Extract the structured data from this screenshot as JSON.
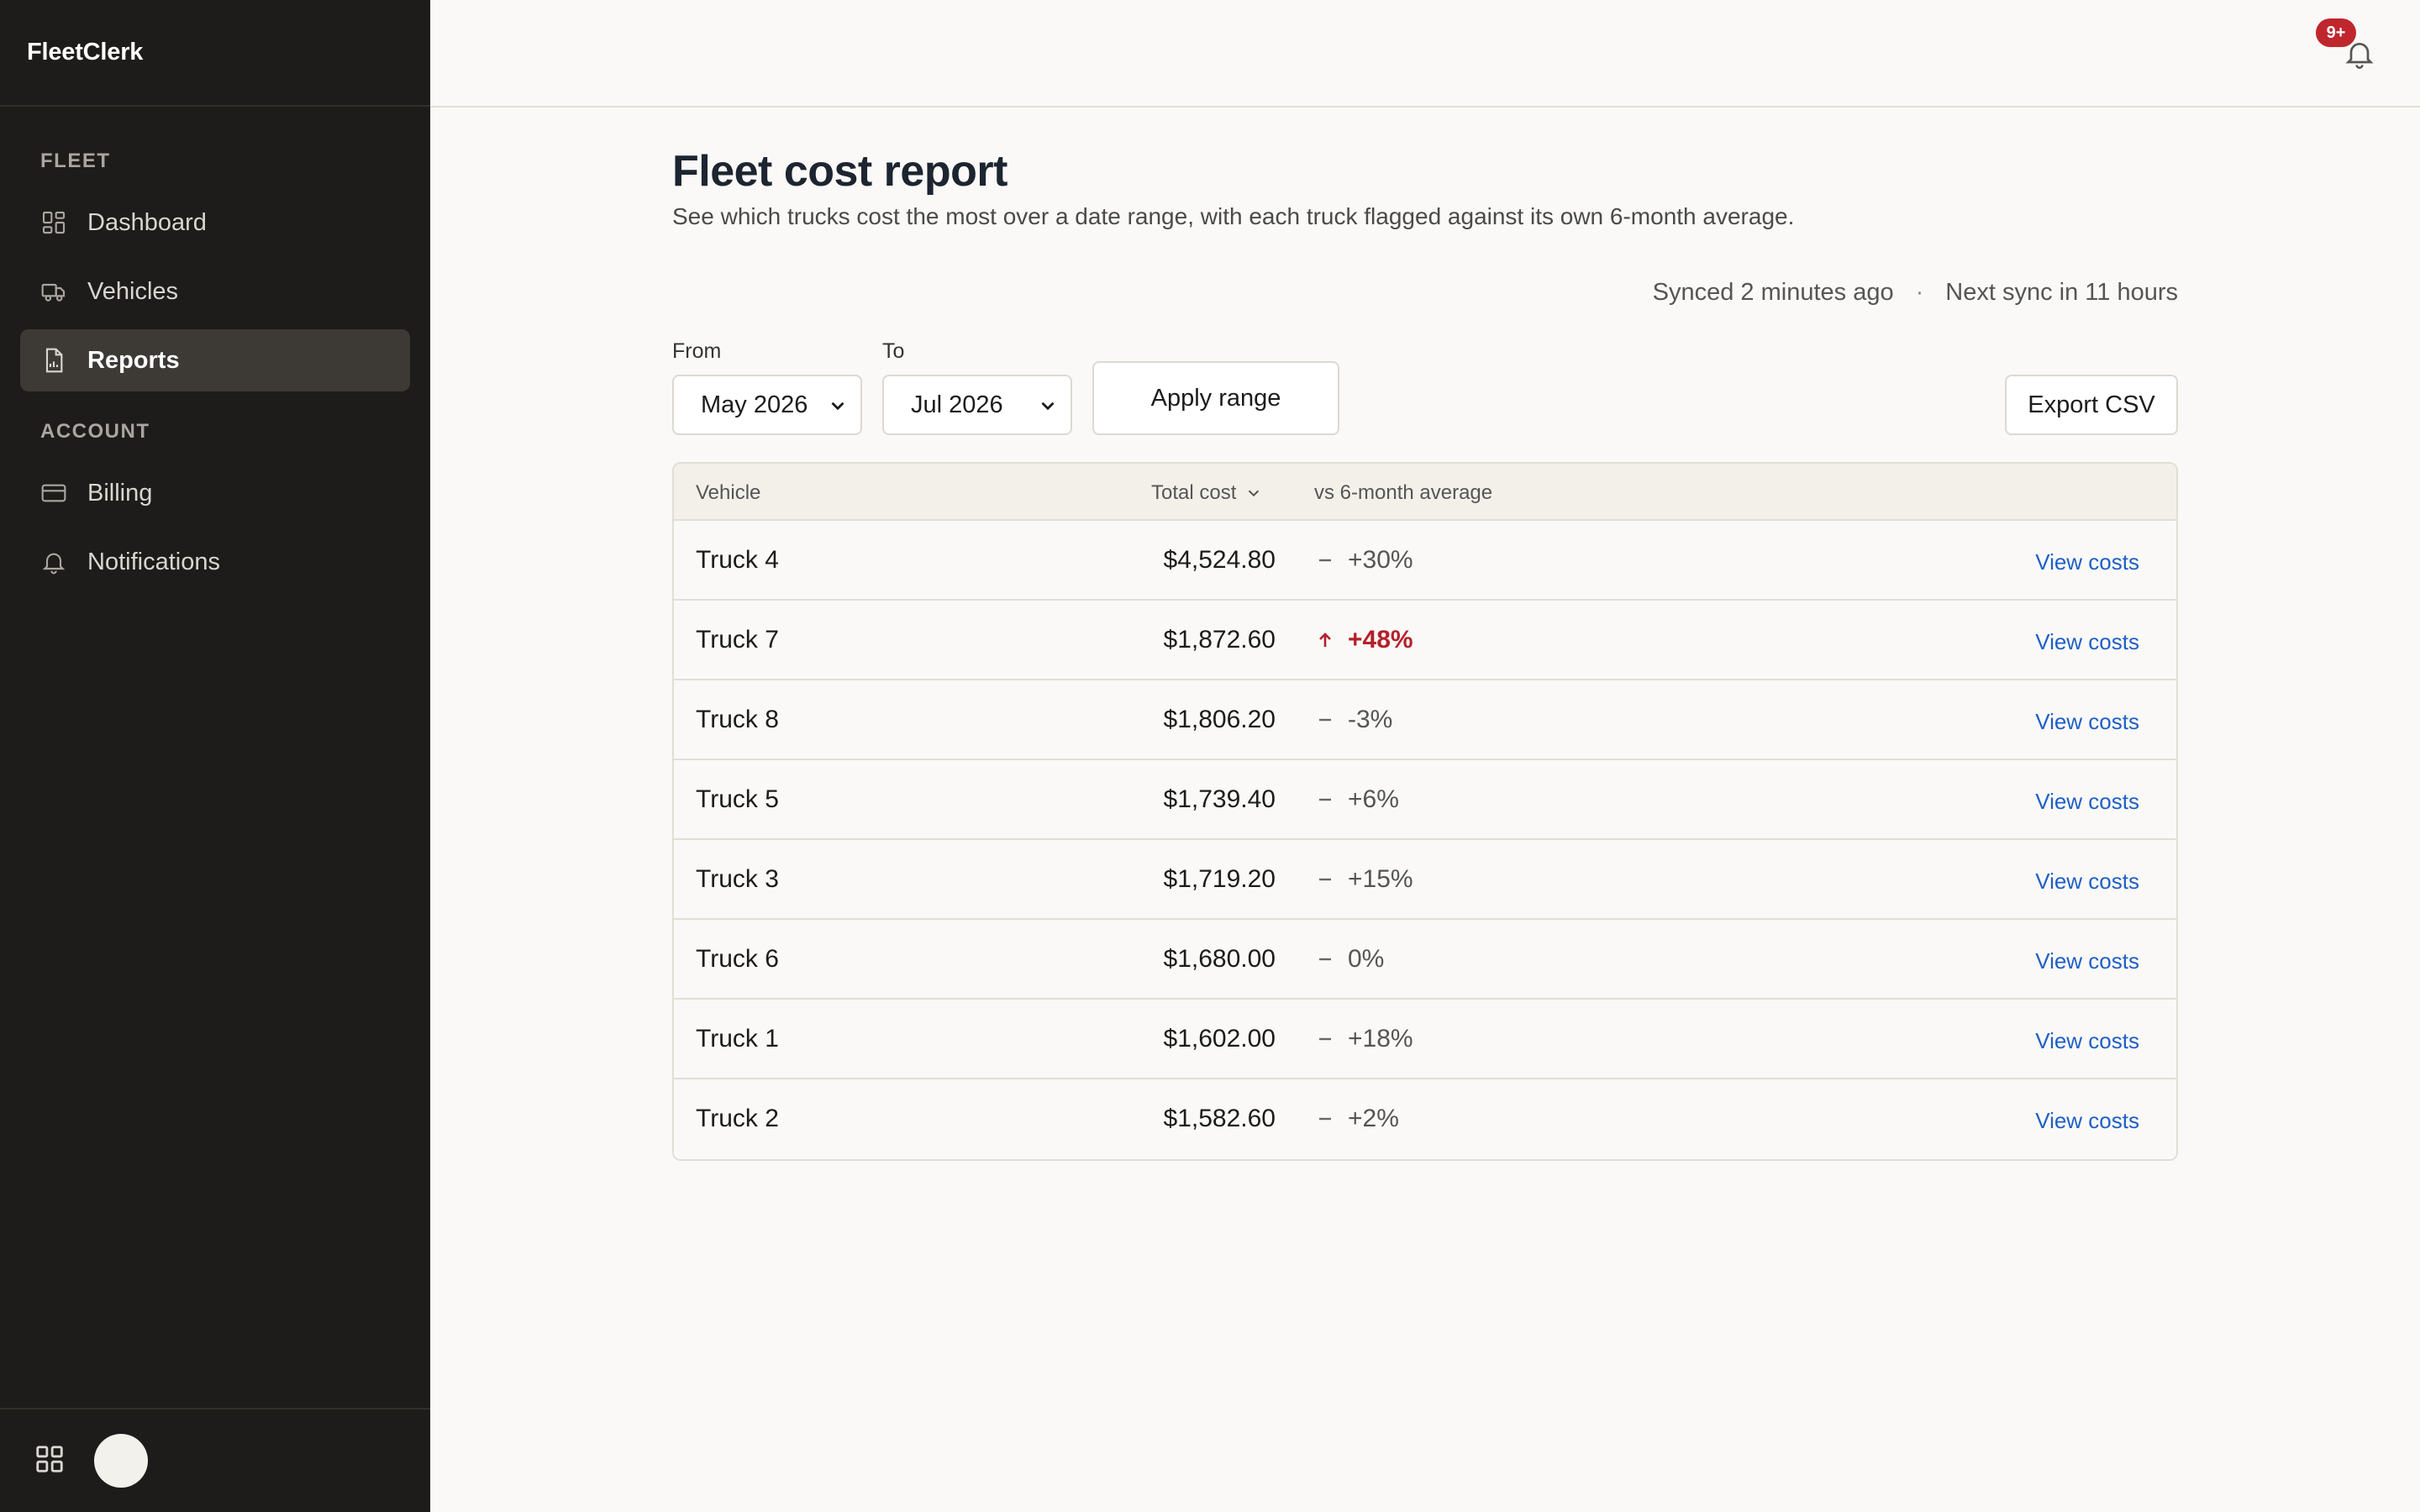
{
  "app": {
    "name": "FleetClerk"
  },
  "sidebar": {
    "sections": [
      {
        "label": "FLEET"
      },
      {
        "label": "ACCOUNT"
      }
    ],
    "items": [
      {
        "label": "Dashboard",
        "icon": "dashboard-icon"
      },
      {
        "label": "Vehicles",
        "icon": "truck-icon"
      },
      {
        "label": "Reports",
        "icon": "report-icon",
        "active": true
      },
      {
        "label": "Billing",
        "icon": "credit-card-icon"
      },
      {
        "label": "Notifications",
        "icon": "bell-icon"
      }
    ]
  },
  "header": {
    "notification_badge": "9+"
  },
  "page": {
    "title": "Fleet cost report",
    "subtitle": "See which trucks cost the most over a date range, with each truck flagged against its own 6-month average.",
    "sync_status": "Synced 2 minutes ago",
    "sync_separator": "·",
    "next_sync": "Next sync in 11 hours"
  },
  "filters": {
    "from_label": "From",
    "from_value": "May 2026",
    "to_label": "To",
    "to_value": "Jul 2026",
    "apply_label": "Apply range",
    "export_label": "Export CSV"
  },
  "table": {
    "columns": [
      "Vehicle",
      "Total cost",
      "vs 6-month average"
    ],
    "action_label": "View costs",
    "rows": [
      {
        "vehicle": "Truck 4",
        "cost": "$4,524.80",
        "delta": "+30%",
        "flag": "neutral"
      },
      {
        "vehicle": "Truck 7",
        "cost": "$1,872.60",
        "delta": "+48%",
        "flag": "up"
      },
      {
        "vehicle": "Truck 8",
        "cost": "$1,806.20",
        "delta": "-3%",
        "flag": "neutral"
      },
      {
        "vehicle": "Truck 5",
        "cost": "$1,739.40",
        "delta": "+6%",
        "flag": "neutral"
      },
      {
        "vehicle": "Truck 3",
        "cost": "$1,719.20",
        "delta": "+15%",
        "flag": "neutral"
      },
      {
        "vehicle": "Truck 6",
        "cost": "$1,680.00",
        "delta": "0%",
        "flag": "neutral"
      },
      {
        "vehicle": "Truck 1",
        "cost": "$1,602.00",
        "delta": "+18%",
        "flag": "neutral"
      },
      {
        "vehicle": "Truck 2",
        "cost": "$1,582.60",
        "delta": "+2%",
        "flag": "neutral"
      }
    ]
  },
  "colors": {
    "sidebar_bg": "#1e1c1a",
    "active_item_bg": "#3d3a36",
    "alert_red": "#b3202a",
    "link_blue": "#1f5fc6",
    "badge_red": "#c0262d"
  }
}
